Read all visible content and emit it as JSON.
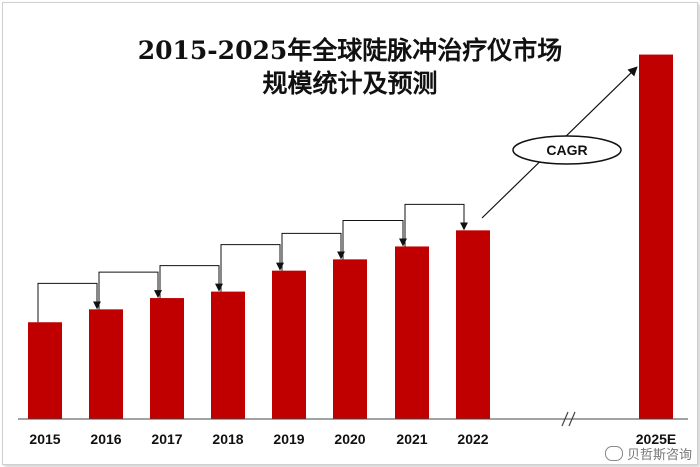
{
  "chart_data": {
    "type": "bar",
    "title": "2015-2025年全球陡脉冲治疗仪市场规模统计及预测",
    "title_lines": [
      "2015-2025年全球陡脉冲治疗仪市场",
      "规模统计及预测"
    ],
    "categories": [
      "2015",
      "2016",
      "2017",
      "2018",
      "2019",
      "2020",
      "2021",
      "2022",
      "2025E"
    ],
    "values": [
      30,
      34,
      37.5,
      39.5,
      46,
      49.5,
      53.5,
      58.5,
      113
    ],
    "ylim": [
      0,
      120
    ],
    "grid": false,
    "legend": "none",
    "bar_color": "#c00000",
    "axis_break_between": [
      "2022",
      "2025E"
    ],
    "annotation": "CAGR"
  },
  "branding": "贝哲斯咨询"
}
